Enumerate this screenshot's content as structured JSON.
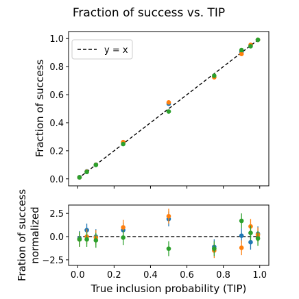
{
  "title": "Fraction of success vs. TIP",
  "colors": {
    "blue": "#1f77b4",
    "orange": "#ff7f0e",
    "green": "#2ca02c",
    "line": "#000000"
  },
  "chart_data": [
    {
      "type": "scatter",
      "ylabel": "Fraction of success",
      "xlim": [
        -0.05,
        1.05
      ],
      "ylim": [
        -0.05,
        1.05
      ],
      "yticks": [
        "0.0",
        "0.2",
        "0.4",
        "0.6",
        "0.8",
        "1.0"
      ],
      "legend": {
        "placement": "top-left",
        "label": "y = x"
      },
      "reference_line": {
        "label": "y = x",
        "style": "dashed",
        "x": [
          0,
          1
        ],
        "y": [
          0,
          1
        ]
      },
      "x": [
        0.01,
        0.05,
        0.1,
        0.25,
        0.5,
        0.75,
        0.9,
        0.95,
        0.99
      ],
      "series": [
        {
          "color": "blue",
          "values": [
            0.012,
            0.053,
            0.101,
            0.258,
            0.535,
            0.726,
            0.905,
            0.952,
            0.991
          ]
        },
        {
          "color": "orange",
          "values": [
            0.011,
            0.051,
            0.1,
            0.262,
            0.545,
            0.724,
            0.89,
            0.955,
            0.991
          ]
        },
        {
          "color": "green",
          "values": [
            0.01,
            0.049,
            0.099,
            0.248,
            0.48,
            0.735,
            0.918,
            0.945,
            0.991
          ]
        }
      ]
    },
    {
      "type": "scatter",
      "xlabel": "True inclusion probability (TIP)",
      "ylabel": [
        "Fration of success",
        "normalized"
      ],
      "xlim": [
        -0.05,
        1.05
      ],
      "ylim": [
        -3.1,
        3.4
      ],
      "xticks": [
        "0.0",
        "0.2",
        "0.4",
        "0.6",
        "0.8",
        "1.0"
      ],
      "yticks": [
        "−2.5",
        "0.0",
        "2.5"
      ],
      "reference_line": {
        "style": "dashed",
        "y": 0
      },
      "x": [
        0.01,
        0.05,
        0.1,
        0.25,
        0.5,
        0.75,
        0.9,
        0.95,
        0.99
      ],
      "series": [
        {
          "color": "blue",
          "values": [
            -0.2,
            0.7,
            0.0,
            0.7,
            1.9,
            -1.1,
            0.1,
            -0.6,
            0.3
          ],
          "errors": [
            0.8,
            0.7,
            0.8,
            0.8,
            0.8,
            0.8,
            0.8,
            0.8,
            0.8
          ]
        },
        {
          "color": "orange",
          "values": [
            -0.3,
            0.0,
            -0.1,
            1.0,
            2.2,
            -1.5,
            -1.2,
            1.1,
            0.2
          ],
          "errors": [
            0.8,
            0.8,
            0.8,
            0.8,
            0.8,
            0.8,
            0.8,
            0.8,
            0.8
          ]
        },
        {
          "color": "green",
          "values": [
            -0.3,
            -0.3,
            -0.4,
            -0.1,
            -1.3,
            -1.3,
            1.7,
            0.4,
            -0.2
          ],
          "errors": [
            0.8,
            0.8,
            0.8,
            0.8,
            0.8,
            0.8,
            0.8,
            0.8,
            0.8
          ]
        }
      ]
    }
  ]
}
